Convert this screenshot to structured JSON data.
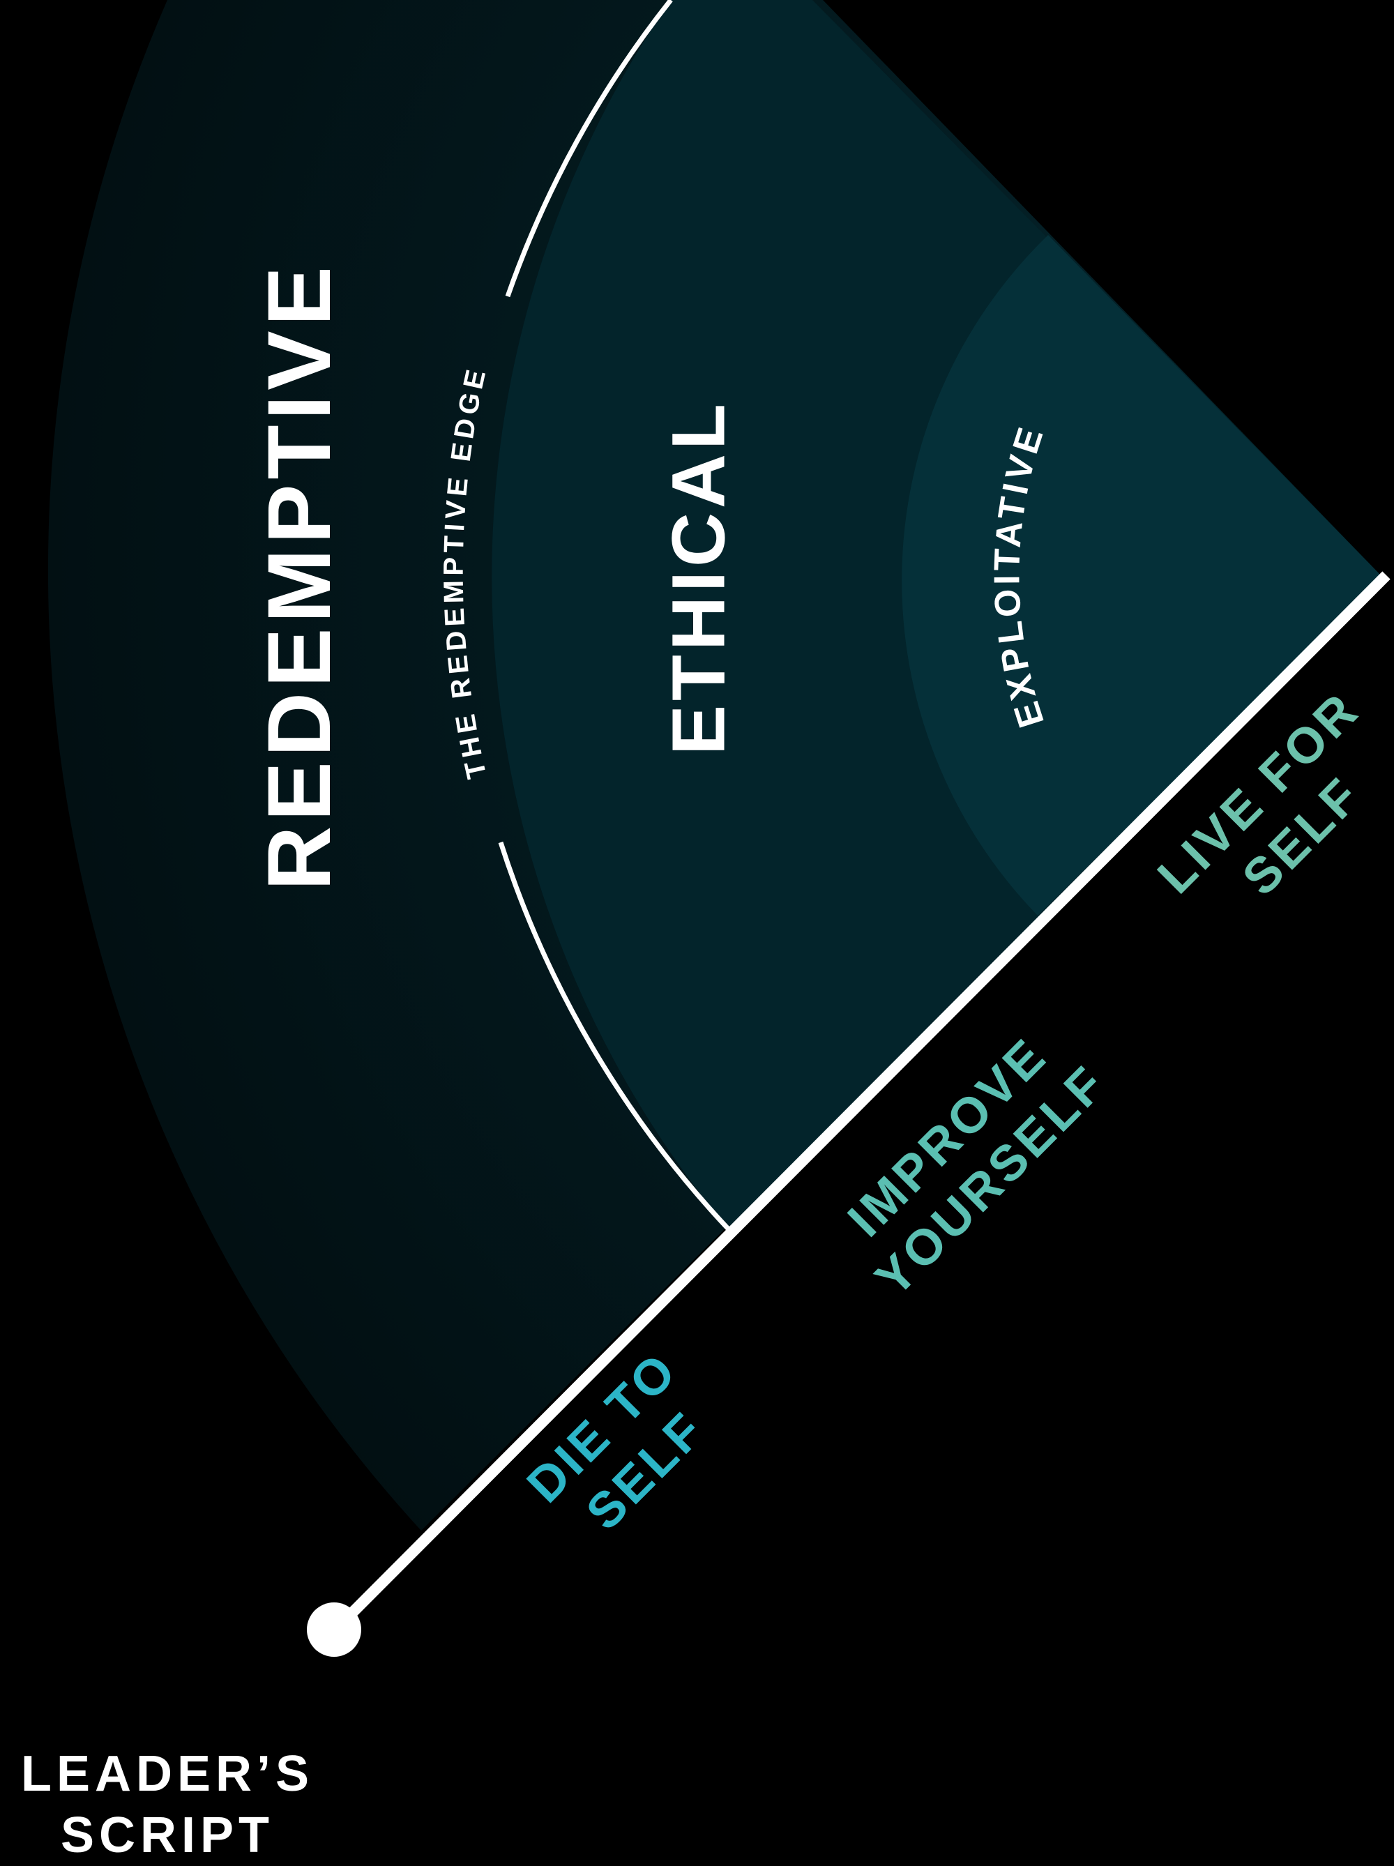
{
  "zones": {
    "redemptive": "REDEMPTIVE",
    "ethical": "ETHICAL",
    "exploitative": "EXPLOITATIVE"
  },
  "edge_label": "THE REDEMPTIVE EDGE",
  "axis_labels": {
    "die_to_self": {
      "line1": "DIE TO",
      "line2": "SELF"
    },
    "improve_yourself": {
      "line1": "IMPROVE",
      "line2": "YOURSELF"
    },
    "live_for_self": {
      "line1": "LIVE FOR",
      "line2": "SELF"
    }
  },
  "corner_label": {
    "line1": "LEADER’S",
    "line2": "SCRIPT"
  },
  "colors": {
    "background": "#000000",
    "outer_band": "#020f12",
    "middle_band": "#03242b",
    "inner_band": "#053039",
    "lines": "#ffffff",
    "die_to_self": "#2cb5c7",
    "improve_yourself": "#5bbfb2",
    "live_for_self": "#6cc1ab"
  }
}
